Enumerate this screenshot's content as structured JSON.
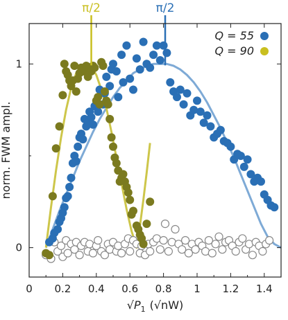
{
  "chart_data": {
    "type": "scatter",
    "title": "",
    "xlabel_parts": {
      "root": "P",
      "sub": "1",
      "unit": "(√nW)"
    },
    "ylabel": "norm. FWM ampl.",
    "xlim": [
      0,
      1.5
    ],
    "ylim": [
      -0.16,
      1.22
    ],
    "xticks": [
      0,
      0.2,
      0.4,
      0.6,
      0.8,
      1,
      1.2,
      1.4
    ],
    "xtick_labels": [
      "0",
      "0.2",
      "0.4",
      "0.6",
      "0.8",
      "1",
      "1.2",
      "1.4"
    ],
    "yticks": [
      0,
      1
    ],
    "ytick_labels": [
      "0",
      "1"
    ],
    "grid": false,
    "legend": {
      "placement": "top-right",
      "entries": [
        {
          "text": "Q = 55",
          "color": "#2a6fb5"
        },
        {
          "text": "Q = 90",
          "color": "#c9bf1f"
        }
      ]
    },
    "annotations": [
      {
        "text": "π/2",
        "x": 0.37,
        "color": "#c9bf1f"
      },
      {
        "text": "π/2",
        "x": 0.81,
        "color": "#2a6fb5"
      }
    ],
    "colors": {
      "q55_marker": "#2a6fb5",
      "q55_fit": "#7eaad6",
      "q90_marker": "#7b7a1f",
      "q90_fit": "#cdc64a",
      "q90_legend": "#c9bf1f",
      "noise_marker": "#888888"
    },
    "series": [
      {
        "name": "Q = 55",
        "kind": "markers",
        "x": [
          0.12,
          0.14,
          0.15,
          0.17,
          0.18,
          0.19,
          0.2,
          0.21,
          0.22,
          0.23,
          0.24,
          0.25,
          0.26,
          0.27,
          0.28,
          0.29,
          0.3,
          0.31,
          0.32,
          0.33,
          0.34,
          0.35,
          0.36,
          0.37,
          0.38,
          0.39,
          0.41,
          0.42,
          0.44,
          0.45,
          0.46,
          0.48,
          0.49,
          0.5,
          0.52,
          0.53,
          0.55,
          0.56,
          0.58,
          0.6,
          0.62,
          0.64,
          0.66,
          0.68,
          0.7,
          0.72,
          0.74,
          0.76,
          0.78,
          0.8,
          0.82,
          0.84,
          0.86,
          0.88,
          0.9,
          0.92,
          0.94,
          0.96,
          0.98,
          1.0,
          1.02,
          1.04,
          1.06,
          1.08,
          1.1,
          1.12,
          1.14,
          1.16,
          1.18,
          1.2,
          1.22,
          1.24,
          1.26,
          1.28,
          1.3,
          1.32,
          1.34,
          1.36,
          1.38,
          1.4,
          1.42,
          1.44,
          1.46
        ],
        "y": [
          0.03,
          0.05,
          0.08,
          0.1,
          0.14,
          0.16,
          0.19,
          0.22,
          0.27,
          0.28,
          0.33,
          0.38,
          0.46,
          0.5,
          0.47,
          0.55,
          0.6,
          0.62,
          0.59,
          0.7,
          0.66,
          0.68,
          0.74,
          0.71,
          0.67,
          0.77,
          0.74,
          0.86,
          0.78,
          0.84,
          0.93,
          0.88,
          0.97,
          1.0,
          0.96,
          0.82,
          1.05,
          0.9,
          1.1,
          0.92,
          0.86,
          1.03,
          0.97,
          1.12,
          1.0,
          0.98,
          1.05,
          1.1,
          1.02,
          1.1,
          1.06,
          0.9,
          0.85,
          0.82,
          0.86,
          0.78,
          0.84,
          0.72,
          0.75,
          0.8,
          0.74,
          0.68,
          0.72,
          0.66,
          0.6,
          0.62,
          0.64,
          0.58,
          0.57,
          0.55,
          0.48,
          0.51,
          0.5,
          0.44,
          0.48,
          0.4,
          0.36,
          0.38,
          0.36,
          0.29,
          0.26,
          0.23,
          0.22
        ]
      },
      {
        "name": "Q = 90",
        "kind": "markers",
        "x": [
          0.1,
          0.12,
          0.14,
          0.16,
          0.18,
          0.2,
          0.21,
          0.22,
          0.23,
          0.24,
          0.25,
          0.26,
          0.27,
          0.28,
          0.29,
          0.3,
          0.31,
          0.32,
          0.33,
          0.34,
          0.35,
          0.36,
          0.37,
          0.38,
          0.39,
          0.4,
          0.41,
          0.42,
          0.43,
          0.44,
          0.45,
          0.46,
          0.47,
          0.48,
          0.49,
          0.5,
          0.51,
          0.52,
          0.53,
          0.54,
          0.55,
          0.56,
          0.57,
          0.58,
          0.59,
          0.6,
          0.61,
          0.62,
          0.64,
          0.65,
          0.66,
          0.67,
          0.68,
          0.7,
          0.72
        ],
        "y": [
          -0.03,
          -0.04,
          0.28,
          0.54,
          0.66,
          0.83,
          1.0,
          0.96,
          0.94,
          0.91,
          0.88,
          0.91,
          0.99,
          0.85,
          0.92,
          0.95,
          0.98,
          0.96,
          0.97,
          0.99,
          0.93,
          0.97,
          0.96,
          0.99,
          0.98,
          0.8,
          0.82,
          0.78,
          1.01,
          0.99,
          0.85,
          0.8,
          0.78,
          0.7,
          0.6,
          0.55,
          0.49,
          0.46,
          0.42,
          0.36,
          0.38,
          0.4,
          0.36,
          0.33,
          0.3,
          0.26,
          0.18,
          0.2,
          0.12,
          0.1,
          0.07,
          0.05,
          0.02,
          0.13,
          0.25
        ]
      },
      {
        "name": "Q = 55 fit",
        "kind": "line",
        "x": [
          0.1,
          0.14,
          0.18,
          0.22,
          0.26,
          0.3,
          0.34,
          0.38,
          0.42,
          0.46,
          0.5,
          0.54,
          0.58,
          0.62,
          0.66,
          0.7,
          0.74,
          0.78,
          0.8,
          0.82,
          0.86,
          0.9,
          0.94,
          0.98,
          1.02,
          1.06,
          1.1,
          1.14,
          1.18,
          1.22,
          1.26,
          1.3,
          1.34,
          1.38,
          1.42,
          1.46,
          1.5
        ],
        "y": [
          0.0,
          0.1,
          0.2,
          0.29,
          0.38,
          0.47,
          0.55,
          0.63,
          0.7,
          0.76,
          0.82,
          0.87,
          0.91,
          0.95,
          0.97,
          0.99,
          1.0,
          1.0,
          1.0,
          1.0,
          0.99,
          0.97,
          0.94,
          0.9,
          0.85,
          0.79,
          0.72,
          0.65,
          0.57,
          0.49,
          0.4,
          0.31,
          0.22,
          0.13,
          0.06,
          0.02,
          0.0
        ]
      },
      {
        "name": "Q = 90 fit",
        "kind": "line",
        "x": [
          0.1,
          0.13,
          0.16,
          0.19,
          0.22,
          0.25,
          0.28,
          0.31,
          0.34,
          0.37,
          0.4,
          0.43,
          0.46,
          0.49,
          0.52,
          0.55,
          0.58,
          0.61,
          0.64,
          0.66,
          0.68,
          0.7,
          0.72
        ],
        "y": [
          0.0,
          0.22,
          0.42,
          0.6,
          0.75,
          0.87,
          0.95,
          0.99,
          1.0,
          0.99,
          0.94,
          0.86,
          0.76,
          0.63,
          0.49,
          0.35,
          0.21,
          0.09,
          0.0,
          0.12,
          0.26,
          0.41,
          0.57
        ]
      },
      {
        "name": "noise",
        "kind": "open-markers",
        "x": [
          0.1,
          0.13,
          0.15,
          0.17,
          0.19,
          0.2,
          0.22,
          0.23,
          0.25,
          0.27,
          0.28,
          0.3,
          0.31,
          0.33,
          0.35,
          0.36,
          0.38,
          0.4,
          0.41,
          0.43,
          0.45,
          0.47,
          0.48,
          0.5,
          0.52,
          0.53,
          0.55,
          0.57,
          0.59,
          0.6,
          0.62,
          0.64,
          0.66,
          0.67,
          0.69,
          0.71,
          0.72,
          0.74,
          0.76,
          0.78,
          0.8,
          0.81,
          0.83,
          0.85,
          0.87,
          0.89,
          0.91,
          0.93,
          0.95,
          0.97,
          0.99,
          1.01,
          1.03,
          1.05,
          1.07,
          1.09,
          1.11,
          1.13,
          1.15,
          1.17,
          1.19,
          1.21,
          1.23,
          1.25,
          1.27,
          1.29,
          1.31,
          1.33,
          1.35,
          1.37,
          1.39,
          1.41,
          1.43
        ],
        "y": [
          -0.04,
          -0.06,
          0.03,
          -0.02,
          0.01,
          -0.05,
          0.04,
          -0.03,
          0.02,
          -0.01,
          0.03,
          -0.04,
          0.01,
          0.03,
          -0.02,
          0.02,
          -0.03,
          0.01,
          0.04,
          -0.02,
          -0.04,
          0.02,
          -0.01,
          0.03,
          -0.02,
          0.01,
          -0.03,
          0.02,
          0.05,
          -0.02,
          0.04,
          0.02,
          -0.03,
          0.01,
          -0.04,
          0.02,
          -0.02,
          0.03,
          0.05,
          -0.01,
          0.04,
          0.13,
          -0.02,
          0.03,
          0.1,
          0.02,
          -0.01,
          0.04,
          -0.03,
          0.02,
          -0.01,
          0.03,
          0.01,
          -0.02,
          0.04,
          -0.03,
          0.02,
          0.06,
          -0.01,
          0.03,
          0.04,
          0.01,
          -0.02,
          0.03,
          0.05,
          -0.01,
          0.02,
          -0.04,
          0.03,
          0.01,
          -0.02,
          0.02,
          0.04
        ]
      }
    ]
  }
}
